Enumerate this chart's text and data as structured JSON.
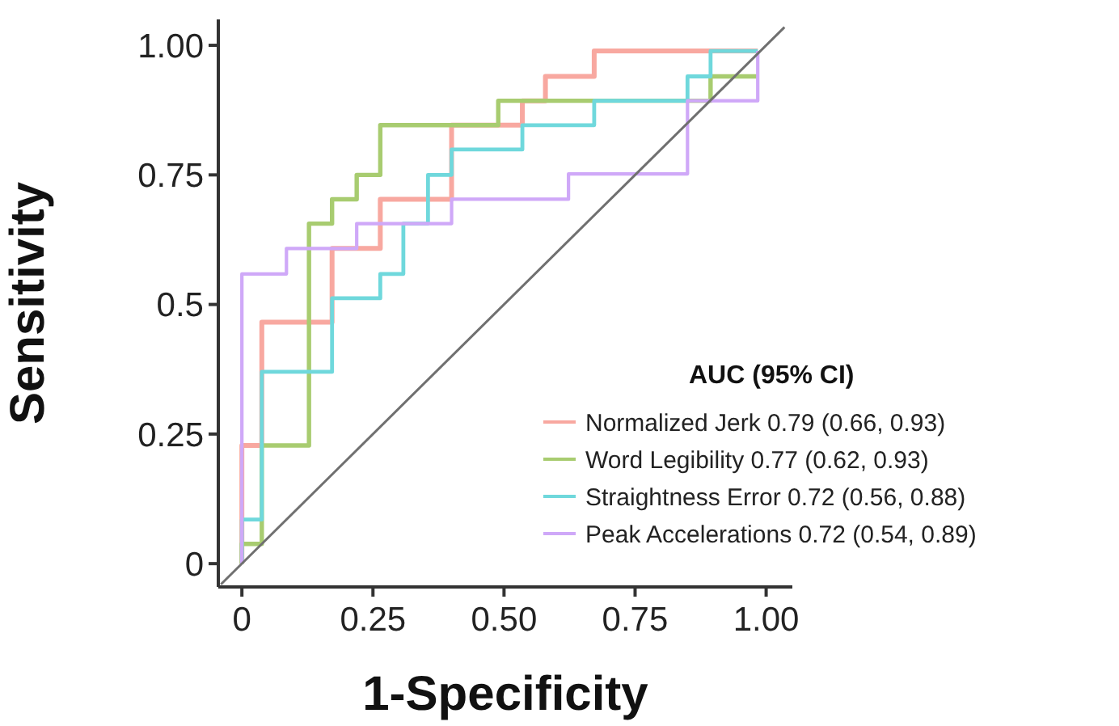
{
  "chart_data": {
    "type": "line",
    "xlabel": "1-Specificity",
    "ylabel": "Sensitivity",
    "legend_title": "AUC (95% CI)",
    "legend": "bottom right",
    "grid": false,
    "marker": "none",
    "xlim": [
      -0.045,
      1.05
    ],
    "ylim": [
      -0.045,
      1.05
    ],
    "xticks": [
      0,
      0.25,
      {
        "value": 0.5,
        "label": "0.50"
      },
      0.75,
      {
        "value": 1,
        "label": "1.00"
      }
    ],
    "yticks": [
      0,
      0.25,
      0.5,
      0.75,
      {
        "value": 1,
        "label": "1.00"
      }
    ],
    "series": [
      {
        "name": "Normalized Jerk 0.79 (0.66, 0.93)",
        "color": "#f8a8a0",
        "x": [
          0,
          0,
          0.038,
          0.038,
          0.172,
          0.172,
          0.264,
          0.264,
          0.4,
          0.4,
          0.535,
          0.535,
          0.579,
          0.579,
          0.672,
          0.672,
          0.984
        ],
        "values": [
          0,
          0.228,
          0.228,
          0.466,
          0.466,
          0.608,
          0.608,
          0.703,
          0.703,
          0.846,
          0.846,
          0.893,
          0.893,
          0.94,
          0.94,
          0.989,
          0.989
        ]
      },
      {
        "name": "Word Legibility 0.77 (0.62, 0.93)",
        "color": "#a8cc70",
        "x": [
          0,
          0,
          0.038,
          0.038,
          0.128,
          0.128,
          0.172,
          0.172,
          0.219,
          0.219,
          0.264,
          0.264,
          0.489,
          0.489,
          0.894,
          0.894,
          0.984
        ],
        "values": [
          0,
          0.038,
          0.038,
          0.228,
          0.228,
          0.656,
          0.656,
          0.703,
          0.703,
          0.75,
          0.75,
          0.846,
          0.846,
          0.893,
          0.893,
          0.94,
          0.94
        ]
      },
      {
        "name": "Straightness Error 0.72 (0.56, 0.88)",
        "color": "#6fd8dc",
        "x": [
          0,
          0,
          0.038,
          0.038,
          0.172,
          0.172,
          0.264,
          0.264,
          0.308,
          0.308,
          0.355,
          0.355,
          0.4,
          0.4,
          0.535,
          0.535,
          0.672,
          0.672,
          0.85,
          0.85,
          0.894,
          0.894,
          0.984
        ],
        "values": [
          0,
          0.085,
          0.085,
          0.37,
          0.37,
          0.512,
          0.512,
          0.559,
          0.559,
          0.656,
          0.656,
          0.75,
          0.75,
          0.799,
          0.799,
          0.846,
          0.846,
          0.893,
          0.893,
          0.94,
          0.94,
          0.989,
          0.989
        ]
      },
      {
        "name": "Peak Accelerations 0.72 (0.54, 0.89)",
        "color": "#cfa8f8",
        "x": [
          0,
          0,
          0.085,
          0.085,
          0.219,
          0.219,
          0.4,
          0.4,
          0.623,
          0.623,
          0.85,
          0.85,
          0.984,
          0.984
        ],
        "values": [
          0,
          0.559,
          0.559,
          0.608,
          0.608,
          0.656,
          0.656,
          0.703,
          0.703,
          0.752,
          0.752,
          0.893,
          0.893,
          0.989
        ]
      },
      {
        "color": "#707070",
        "x": [
          -0.04,
          1.035
        ],
        "values": [
          -0.04,
          1.035
        ]
      }
    ]
  }
}
